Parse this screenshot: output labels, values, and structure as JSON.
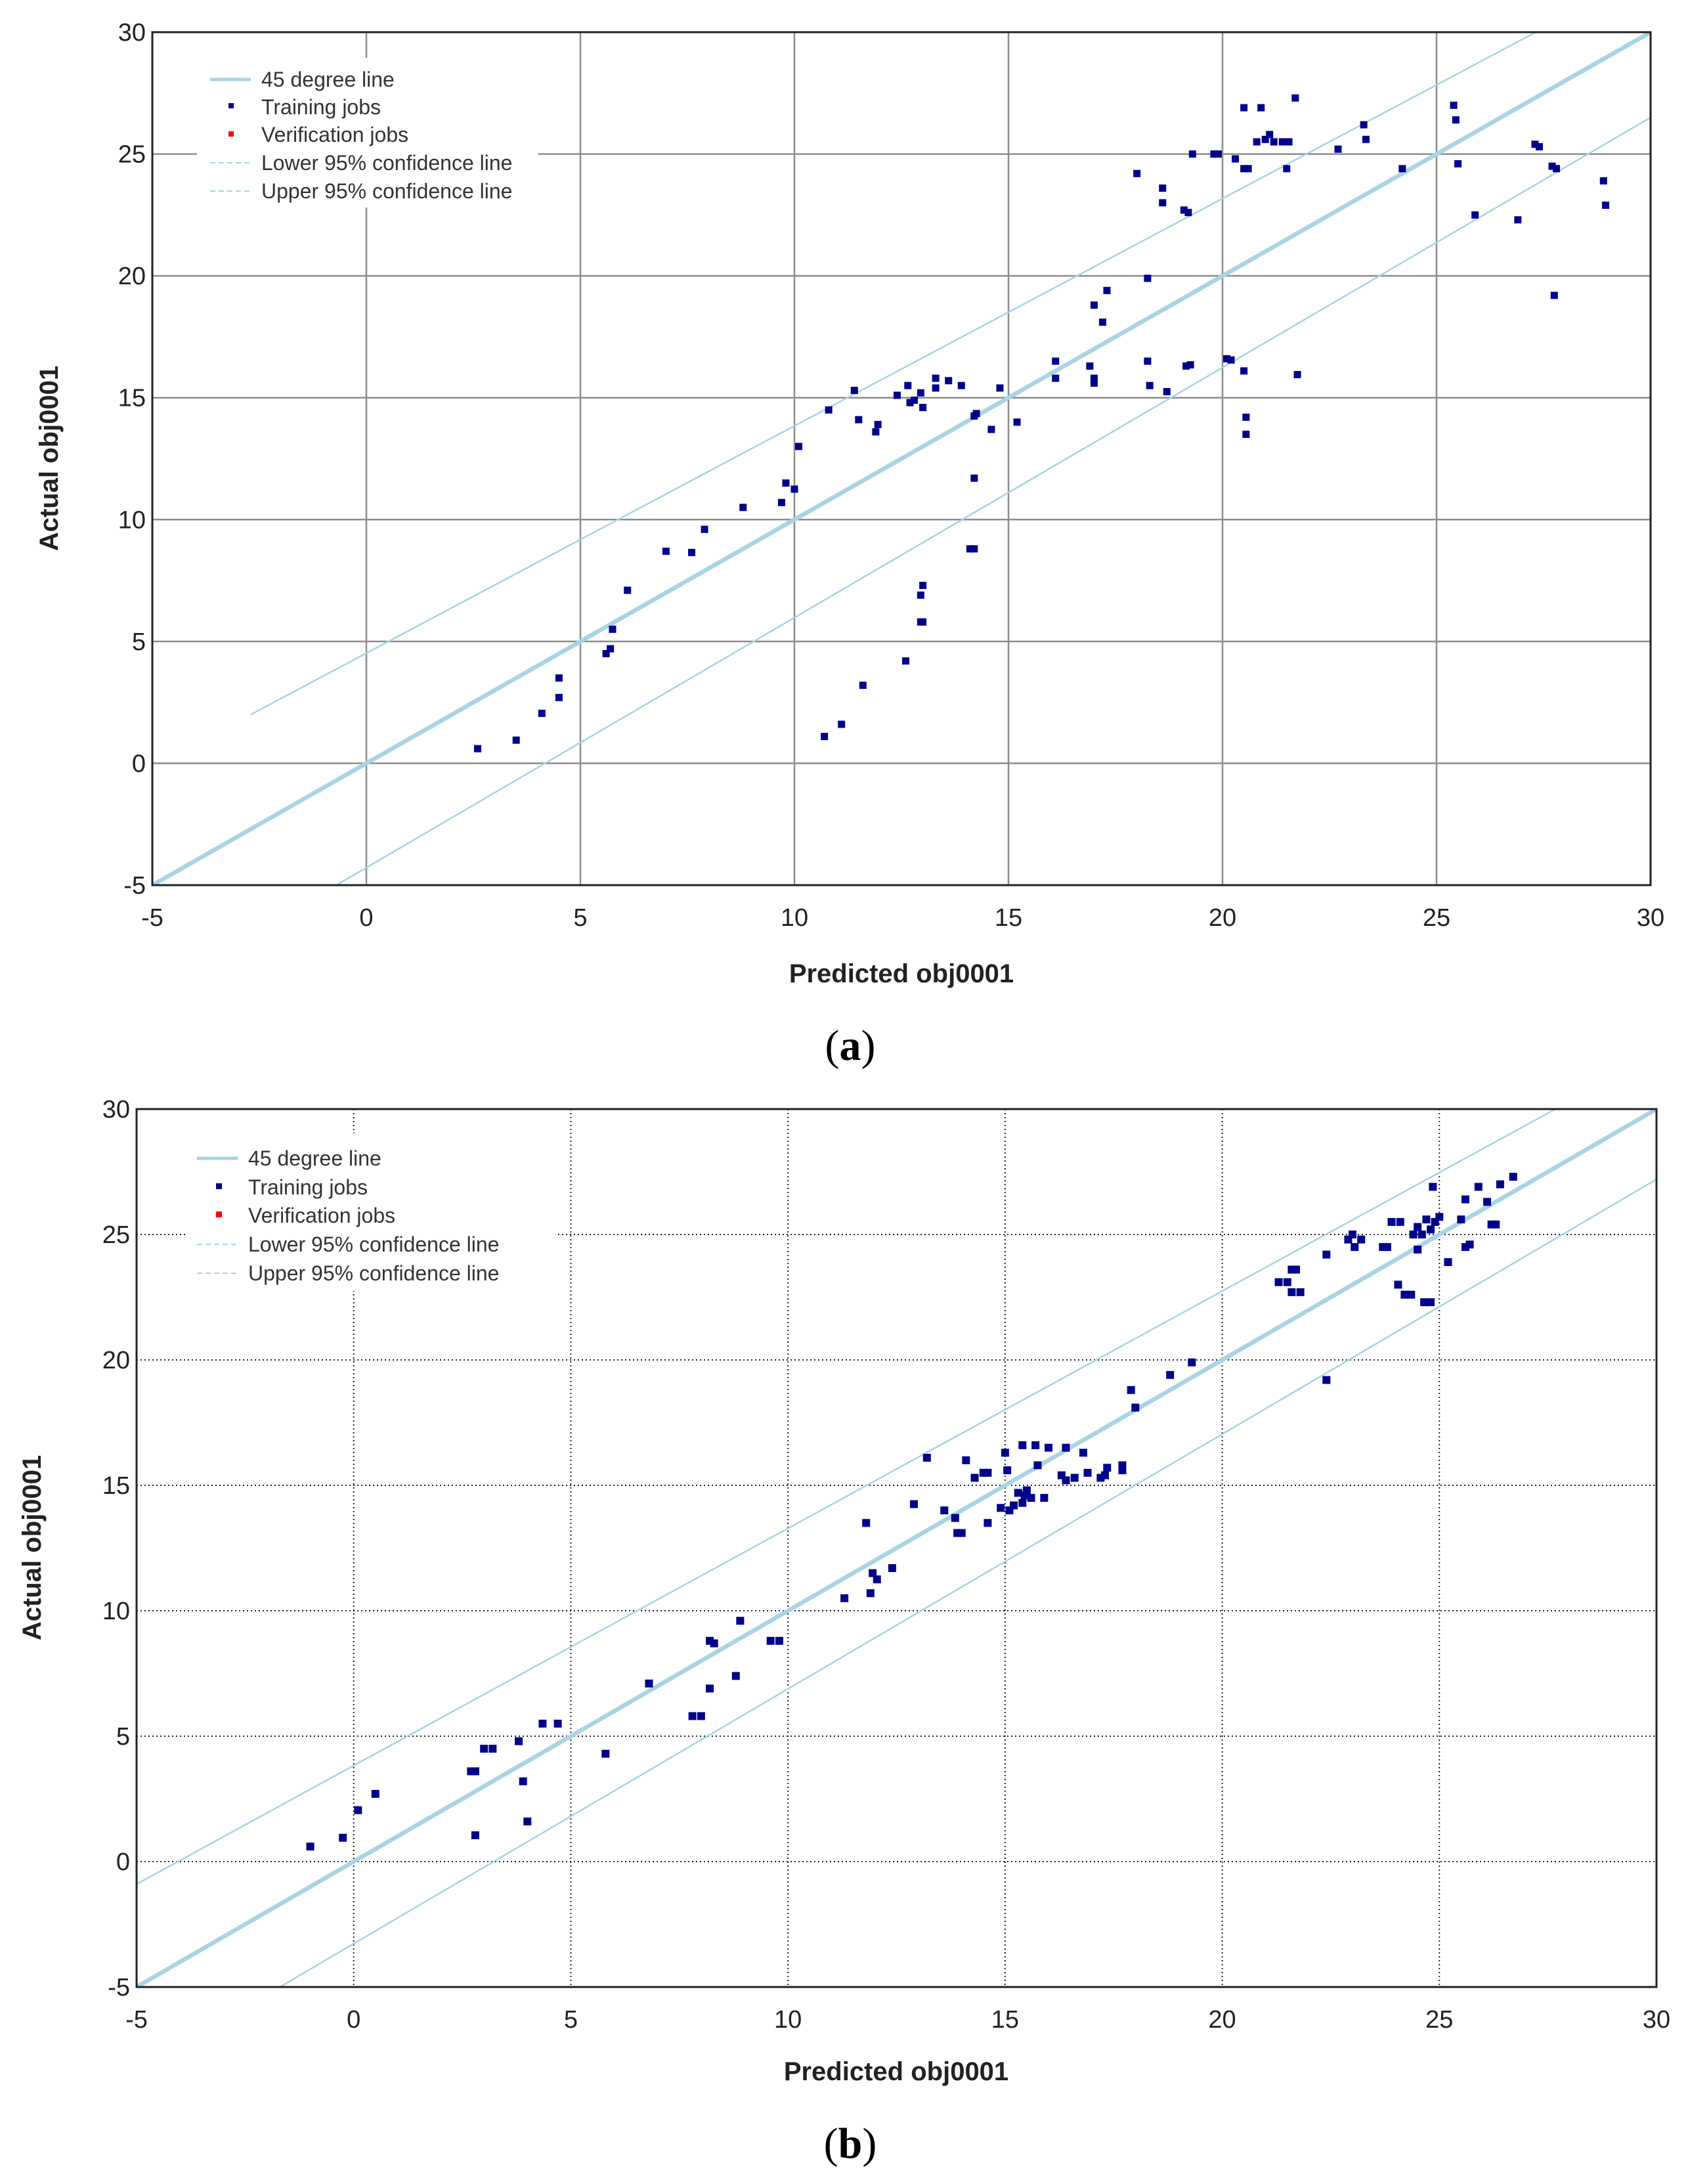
{
  "chart_data": [
    {
      "type": "scatter",
      "panel": "a",
      "caption": {
        "open": "(",
        "letter": "a",
        "close": ")"
      },
      "xlabel": "Predicted obj0001",
      "ylabel": "Actual obj0001",
      "xlim": [
        -5,
        30
      ],
      "ylim": [
        -5,
        30
      ],
      "xticks": [
        -5,
        0,
        5,
        10,
        15,
        20,
        25,
        30
      ],
      "yticks": [
        -5,
        0,
        5,
        10,
        15,
        20,
        25,
        30
      ],
      "grid": "solid",
      "legend_position": "top-left",
      "legend": [
        "45 degree line",
        "Training jobs",
        "Verification jobs",
        "Lower 95% confidence line",
        "Upper 95% confidence line"
      ],
      "colors": {
        "ideal": "#a8d4e4",
        "confidence": "#a8d4e4",
        "training": "#00008b",
        "verification": "#ff0000",
        "grid": "#8c8c8c"
      },
      "reference_line": [
        [
          -5,
          -5
        ],
        [
          30,
          30
        ]
      ],
      "lower_confidence": [
        [
          -0.7,
          -5
        ],
        [
          30,
          26.5
        ]
      ],
      "upper_confidence": [
        [
          -2.7,
          2
        ],
        [
          30,
          32.5
        ]
      ],
      "training": [
        [
          2.6,
          0.6
        ],
        [
          3.5,
          0.95
        ],
        [
          4.1,
          2.05
        ],
        [
          4.5,
          2.7
        ],
        [
          4.5,
          3.5
        ],
        [
          5.6,
          4.5
        ],
        [
          5.7,
          4.7
        ],
        [
          5.75,
          5.5
        ],
        [
          6.1,
          7.1
        ],
        [
          7.0,
          8.7
        ],
        [
          7.6,
          8.65
        ],
        [
          7.9,
          9.6
        ],
        [
          8.8,
          10.5
        ],
        [
          9.7,
          10.7
        ],
        [
          9.8,
          11.5
        ],
        [
          10.0,
          11.25
        ],
        [
          10.1,
          13.0
        ],
        [
          10.7,
          1.1
        ],
        [
          11.1,
          1.6
        ],
        [
          11.6,
          3.2
        ],
        [
          10.8,
          14.5
        ],
        [
          11.4,
          15.3
        ],
        [
          11.5,
          14.1
        ],
        [
          11.9,
          13.6
        ],
        [
          11.95,
          13.9
        ],
        [
          12.4,
          15.1
        ],
        [
          12.65,
          15.5
        ],
        [
          12.6,
          4.2
        ],
        [
          12.7,
          14.8
        ],
        [
          12.8,
          14.9
        ],
        [
          12.95,
          15.2
        ],
        [
          13.0,
          14.6
        ],
        [
          13.3,
          15.4
        ],
        [
          13.3,
          15.8
        ],
        [
          13.6,
          15.7
        ],
        [
          13.9,
          15.5
        ],
        [
          12.95,
          5.8
        ],
        [
          12.95,
          6.9
        ],
        [
          13.0,
          7.3
        ],
        [
          13.0,
          5.8
        ],
        [
          14.1,
          8.8
        ],
        [
          14.2,
          8.8
        ],
        [
          14.2,
          11.7
        ],
        [
          14.2,
          14.25
        ],
        [
          14.25,
          14.35
        ],
        [
          14.6,
          13.7
        ],
        [
          14.8,
          15.4
        ],
        [
          15.2,
          14.0
        ],
        [
          16.1,
          16.5
        ],
        [
          16.1,
          15.8
        ],
        [
          17.0,
          18.8
        ],
        [
          16.9,
          16.3
        ],
        [
          17.0,
          15.8
        ],
        [
          17.0,
          15.6
        ],
        [
          17.3,
          19.4
        ],
        [
          17.2,
          18.1
        ],
        [
          18.0,
          24.2
        ],
        [
          18.25,
          19.9
        ],
        [
          18.25,
          16.5
        ],
        [
          18.3,
          15.5
        ],
        [
          18.6,
          23.6
        ],
        [
          18.6,
          23.0
        ],
        [
          18.7,
          15.25
        ],
        [
          19.1,
          22.7
        ],
        [
          19.2,
          22.6
        ],
        [
          19.15,
          16.3
        ],
        [
          19.25,
          16.35
        ],
        [
          19.3,
          25.0
        ],
        [
          19.8,
          25.0
        ],
        [
          19.9,
          25.0
        ],
        [
          20.1,
          16.6
        ],
        [
          20.2,
          16.55
        ],
        [
          20.3,
          24.8
        ],
        [
          20.5,
          16.1
        ],
        [
          20.5,
          24.4
        ],
        [
          20.5,
          26.9
        ],
        [
          20.6,
          24.4
        ],
        [
          20.55,
          14.2
        ],
        [
          20.55,
          13.5
        ],
        [
          20.8,
          25.5
        ],
        [
          20.9,
          26.9
        ],
        [
          21.0,
          25.6
        ],
        [
          21.1,
          25.8
        ],
        [
          21.2,
          25.5
        ],
        [
          21.4,
          25.5
        ],
        [
          21.5,
          24.4
        ],
        [
          21.55,
          25.5
        ],
        [
          21.7,
          27.3
        ],
        [
          21.75,
          15.95
        ],
        [
          22.7,
          25.2
        ],
        [
          23.3,
          26.2
        ],
        [
          23.35,
          25.6
        ],
        [
          24.2,
          24.4
        ],
        [
          25.4,
          27.0
        ],
        [
          25.45,
          26.4
        ],
        [
          25.5,
          24.6
        ],
        [
          25.9,
          22.5
        ],
        [
          26.9,
          22.3
        ],
        [
          27.3,
          25.4
        ],
        [
          27.4,
          25.3
        ],
        [
          27.7,
          24.5
        ],
        [
          27.8,
          24.4
        ],
        [
          27.75,
          19.2
        ],
        [
          28.9,
          23.9
        ],
        [
          28.95,
          22.9
        ]
      ],
      "verification": []
    },
    {
      "type": "scatter",
      "panel": "b",
      "caption": {
        "open": "(",
        "letter": "b",
        "close": ")"
      },
      "xlabel": "Predicted obj0001",
      "ylabel": "Actual obj0001",
      "xlim": [
        -5,
        30
      ],
      "ylim": [
        -5,
        30
      ],
      "xticks": [
        -5,
        0,
        5,
        10,
        15,
        20,
        25,
        30
      ],
      "yticks": [
        -5,
        0,
        5,
        10,
        15,
        20,
        25,
        30
      ],
      "grid": "dotted",
      "legend_position": "top-left",
      "legend": [
        "45 degree line",
        "Training jobs",
        "Verification jobs",
        "Lower 95% confidence line",
        "Upper 95% confidence line"
      ],
      "colors": {
        "ideal": "#a8d4e4",
        "confidence": "#a8d4e4",
        "training": "#00008b",
        "verification": "#ff0000",
        "grid": "#222222"
      },
      "reference_line": [
        [
          -5,
          -5
        ],
        [
          30,
          30
        ]
      ],
      "lower_confidence": [
        [
          -1.7,
          -5
        ],
        [
          30,
          27.2
        ]
      ],
      "upper_confidence": [
        [
          -5,
          -0.9
        ],
        [
          30,
          32.2
        ]
      ],
      "training": [
        [
          -1.0,
          0.6
        ],
        [
          -0.25,
          0.95
        ],
        [
          0.1,
          2.05
        ],
        [
          0.5,
          2.7
        ],
        [
          2.7,
          3.6
        ],
        [
          2.8,
          3.6
        ],
        [
          3.0,
          4.5
        ],
        [
          3.2,
          4.5
        ],
        [
          2.8,
          1.05
        ],
        [
          3.8,
          4.8
        ],
        [
          3.9,
          3.2
        ],
        [
          4.0,
          1.6
        ],
        [
          4.35,
          5.5
        ],
        [
          4.7,
          5.5
        ],
        [
          5.8,
          4.3
        ],
        [
          6.8,
          7.1
        ],
        [
          7.8,
          5.8
        ],
        [
          8.0,
          5.8
        ],
        [
          8.2,
          6.9
        ],
        [
          8.2,
          8.8
        ],
        [
          8.3,
          8.7
        ],
        [
          8.8,
          7.4
        ],
        [
          8.9,
          9.6
        ],
        [
          9.6,
          8.8
        ],
        [
          9.8,
          8.8
        ],
        [
          11.3,
          10.5
        ],
        [
          11.8,
          13.5
        ],
        [
          11.9,
          10.7
        ],
        [
          11.95,
          11.5
        ],
        [
          12.05,
          11.25
        ],
        [
          12.4,
          11.7
        ],
        [
          12.9,
          14.25
        ],
        [
          13.2,
          16.1
        ],
        [
          13.6,
          14.0
        ],
        [
          13.85,
          13.7
        ],
        [
          13.9,
          13.1
        ],
        [
          14.0,
          13.1
        ],
        [
          14.1,
          16.0
        ],
        [
          14.3,
          15.3
        ],
        [
          14.5,
          15.5
        ],
        [
          14.6,
          15.5
        ],
        [
          14.6,
          13.5
        ],
        [
          14.9,
          14.1
        ],
        [
          15.0,
          16.3
        ],
        [
          15.1,
          14.0
        ],
        [
          15.05,
          15.6
        ],
        [
          15.2,
          14.2
        ],
        [
          15.3,
          14.7
        ],
        [
          15.4,
          14.3
        ],
        [
          15.4,
          16.6
        ],
        [
          15.45,
          14.6
        ],
        [
          15.5,
          14.8
        ],
        [
          15.6,
          14.5
        ],
        [
          15.7,
          16.6
        ],
        [
          15.75,
          15.8
        ],
        [
          15.9,
          14.5
        ],
        [
          16.0,
          16.5
        ],
        [
          16.3,
          15.4
        ],
        [
          16.4,
          16.5
        ],
        [
          16.4,
          15.2
        ],
        [
          16.6,
          15.3
        ],
        [
          16.8,
          16.3
        ],
        [
          16.9,
          15.5
        ],
        [
          17.2,
          15.3
        ],
        [
          17.3,
          15.4
        ],
        [
          17.35,
          15.7
        ],
        [
          17.7,
          15.8
        ],
        [
          17.7,
          15.6
        ],
        [
          17.9,
          18.8
        ],
        [
          18.0,
          18.1
        ],
        [
          18.8,
          19.4
        ],
        [
          19.3,
          19.9
        ],
        [
          21.3,
          23.1
        ],
        [
          21.5,
          23.1
        ],
        [
          21.6,
          23.6
        ],
        [
          21.7,
          23.6
        ],
        [
          21.6,
          22.7
        ],
        [
          21.8,
          22.7
        ],
        [
          22.4,
          24.2
        ],
        [
          22.4,
          19.2
        ],
        [
          22.9,
          24.8
        ],
        [
          23.0,
          25.0
        ],
        [
          23.05,
          24.5
        ],
        [
          23.2,
          24.8
        ],
        [
          23.7,
          24.5
        ],
        [
          23.8,
          24.5
        ],
        [
          23.9,
          25.5
        ],
        [
          24.1,
          25.5
        ],
        [
          24.05,
          23.0
        ],
        [
          24.2,
          22.6
        ],
        [
          24.35,
          22.6
        ],
        [
          24.4,
          25.0
        ],
        [
          24.5,
          25.3
        ],
        [
          24.5,
          24.4
        ],
        [
          24.6,
          25.0
        ],
        [
          24.65,
          22.3
        ],
        [
          24.8,
          22.3
        ],
        [
          24.7,
          25.6
        ],
        [
          24.8,
          25.2
        ],
        [
          24.85,
          26.9
        ],
        [
          24.9,
          25.5
        ],
        [
          25.0,
          25.7
        ],
        [
          25.2,
          23.9
        ],
        [
          25.5,
          25.6
        ],
        [
          25.6,
          26.4
        ],
        [
          25.6,
          24.5
        ],
        [
          25.7,
          24.6
        ],
        [
          25.9,
          26.9
        ],
        [
          26.1,
          26.3
        ],
        [
          26.2,
          25.4
        ],
        [
          26.3,
          25.4
        ],
        [
          26.4,
          27.0
        ],
        [
          26.7,
          27.3
        ]
      ],
      "verification": []
    }
  ]
}
